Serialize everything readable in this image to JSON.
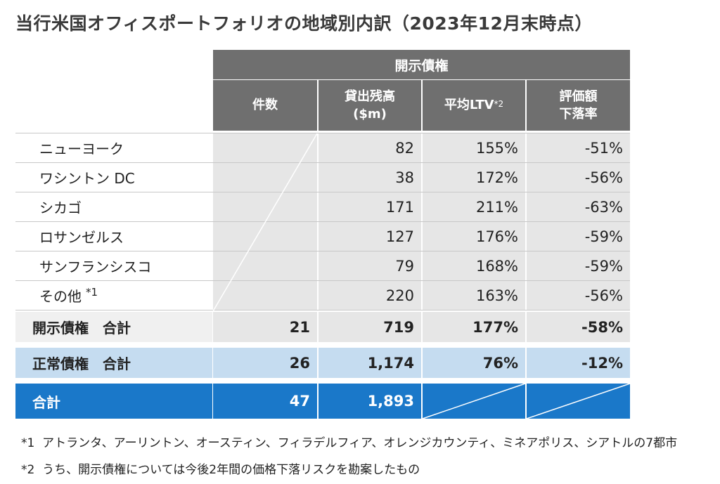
{
  "title": "当行米国オフィスポートフォリオの地域別内訳（2023年12月末時点）",
  "table": {
    "group_header": "開示債権",
    "columns": {
      "count": "件数",
      "balance_line1": "貸出残高",
      "balance_line2": "($m)",
      "ltv": "平均LTV",
      "ltv_note": "*2",
      "decline_line1": "評価額",
      "decline_line2": "下落率"
    },
    "rows": [
      {
        "region": "ニューヨーク",
        "count": "",
        "balance": "82",
        "ltv": "155%",
        "decline": "-51%"
      },
      {
        "region": "ワシントン DC",
        "count": "",
        "balance": "38",
        "ltv": "172%",
        "decline": "-56%"
      },
      {
        "region": "シカゴ",
        "count": "",
        "balance": "171",
        "ltv": "211%",
        "decline": "-63%"
      },
      {
        "region": "ロサンゼルス",
        "count": "",
        "balance": "127",
        "ltv": "176%",
        "decline": "-59%"
      },
      {
        "region": "サンフランシスコ",
        "count": "",
        "balance": "79",
        "ltv": "168%",
        "decline": "-59%"
      },
      {
        "region": "その他",
        "region_note": "*1",
        "count": "",
        "balance": "220",
        "ltv": "163%",
        "decline": "-56%"
      }
    ],
    "disclosed_total": {
      "label": "開示債権　合計",
      "count": "21",
      "balance": "719",
      "ltv": "177%",
      "decline": "-58%"
    },
    "normal_total": {
      "label": "正常債権　合計",
      "count": "26",
      "balance": "1,174",
      "ltv": "76%",
      "decline": "-12%"
    },
    "grand_total": {
      "label": "合計",
      "count": "47",
      "balance": "1,893",
      "ltv": "",
      "decline": ""
    }
  },
  "footnotes": [
    {
      "mark": "*1",
      "text": "アトランタ、アーリントン、オースティン、フィラデルフィア、オレンジカウンティ、ミネアポリス、シアトルの7都市"
    },
    {
      "mark": "*2",
      "text": "うち、開示債権については今後2年間の価格下落リスクを勘案したもの"
    }
  ],
  "colors": {
    "header_gray": "#6f6f6f",
    "cell_gray": "#e6e6e6",
    "light_blue": "#c5dcf0",
    "blue": "#1a78c9"
  }
}
